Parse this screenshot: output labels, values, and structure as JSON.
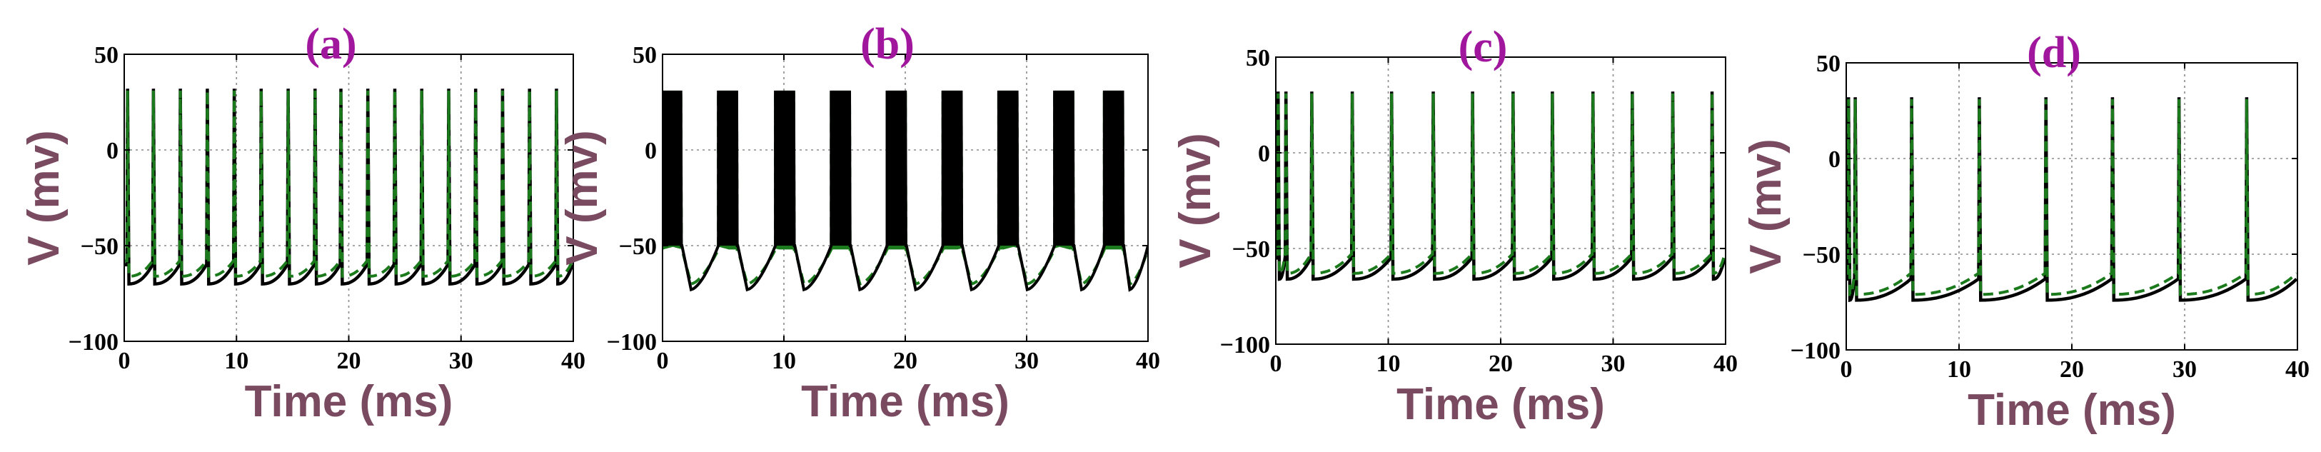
{
  "chart_data": [
    {
      "type": "line",
      "panel_label": "(a)",
      "xlabel": "Time (ms)",
      "ylabel": "V (mv)",
      "xlim": [
        0,
        40
      ],
      "ylim": [
        -100,
        50
      ],
      "xticks": [
        0,
        10,
        20,
        30,
        40
      ],
      "yticks": [
        -100,
        -50,
        0,
        50
      ],
      "grid": true,
      "series": [
        {
          "style": "solid",
          "color": "#000000",
          "spike_times": [
            0.3,
            2.6,
            5.0,
            7.4,
            9.8,
            12.2,
            14.6,
            17.0,
            19.3,
            21.7,
            24.1,
            26.5,
            28.9,
            31.3,
            33.7,
            36.1,
            38.5
          ],
          "rest": -70,
          "pre_spike": -60,
          "peak": 32
        },
        {
          "style": "dashed",
          "color": "#1b7a1b",
          "spike_times": [
            0.3,
            2.6,
            5.0,
            7.4,
            9.8,
            12.2,
            14.6,
            17.0,
            19.3,
            21.7,
            24.1,
            26.5,
            28.9,
            31.3,
            33.7,
            36.1,
            38.5
          ],
          "rest": -66,
          "pre_spike": -58,
          "peak": 31
        }
      ]
    },
    {
      "type": "line",
      "panel_label": "(b)",
      "xlabel": "Time (ms)",
      "ylabel": "V (mv)",
      "xlim": [
        0,
        40
      ],
      "ylim": [
        -100,
        50
      ],
      "xticks": [
        0,
        10,
        20,
        30,
        40
      ],
      "yticks": [
        -100,
        -50,
        0,
        50
      ],
      "grid": true,
      "bursts": [
        {
          "start": 0,
          "end": 1.6
        },
        {
          "start": 4.6,
          "end": 6.2
        },
        {
          "start": 9.3,
          "end": 10.9
        },
        {
          "start": 13.9,
          "end": 15.5
        },
        {
          "start": 18.5,
          "end": 20.1
        },
        {
          "start": 23.1,
          "end": 24.7
        },
        {
          "start": 27.7,
          "end": 29.3
        },
        {
          "start": 32.3,
          "end": 33.9
        },
        {
          "start": 36.4,
          "end": 38.0
        }
      ],
      "series": [
        {
          "style": "solid",
          "color": "#000000",
          "rest": -73,
          "plateau": -50,
          "peak": 31
        },
        {
          "style": "dashed",
          "color": "#1b7a1b",
          "rest": -70,
          "plateau": -52,
          "peak": 30
        }
      ]
    },
    {
      "type": "line",
      "panel_label": "(c)",
      "xlabel": "Time (ms)",
      "ylabel": "V (mv)",
      "xlim": [
        0,
        40
      ],
      "ylim": [
        -100,
        50
      ],
      "xticks": [
        0,
        10,
        20,
        30,
        40
      ],
      "yticks": [
        -100,
        -50,
        0,
        50
      ],
      "grid": true,
      "series": [
        {
          "style": "solid",
          "color": "#000000",
          "spike_times": [
            0.2,
            0.9,
            3.2,
            6.8,
            10.3,
            14.0,
            17.5,
            21.1,
            24.6,
            28.2,
            31.7,
            35.3,
            38.8
          ],
          "rest": -66,
          "pre_spike": -55,
          "peak": 32
        },
        {
          "style": "dashed",
          "color": "#1b7a1b",
          "spike_times": [
            0.2,
            0.9,
            3.2,
            6.8,
            10.3,
            14.0,
            17.5,
            21.1,
            24.6,
            28.2,
            31.7,
            35.3,
            38.8
          ],
          "rest": -63,
          "pre_spike": -53,
          "peak": 31
        }
      ]
    },
    {
      "type": "line",
      "panel_label": "(d)",
      "xlabel": "Time (ms)",
      "ylabel": "V (mv)",
      "xlim": [
        0,
        40
      ],
      "ylim": [
        -100,
        50
      ],
      "xticks": [
        0,
        10,
        20,
        30,
        40
      ],
      "yticks": [
        -100,
        -50,
        0,
        50
      ],
      "grid": true,
      "series": [
        {
          "style": "solid",
          "color": "#000000",
          "spike_times": [
            0.2,
            0.8,
            5.8,
            11.8,
            17.7,
            23.6,
            29.5,
            35.5
          ],
          "rest": -74,
          "pre_spike": -63,
          "peak": 32
        },
        {
          "style": "dashed",
          "color": "#1b7a1b",
          "spike_times": [
            0.2,
            0.8,
            5.8,
            11.8,
            17.7,
            23.6,
            29.5,
            35.5
          ],
          "rest": -71,
          "pre_spike": -60,
          "peak": 31
        }
      ]
    }
  ]
}
